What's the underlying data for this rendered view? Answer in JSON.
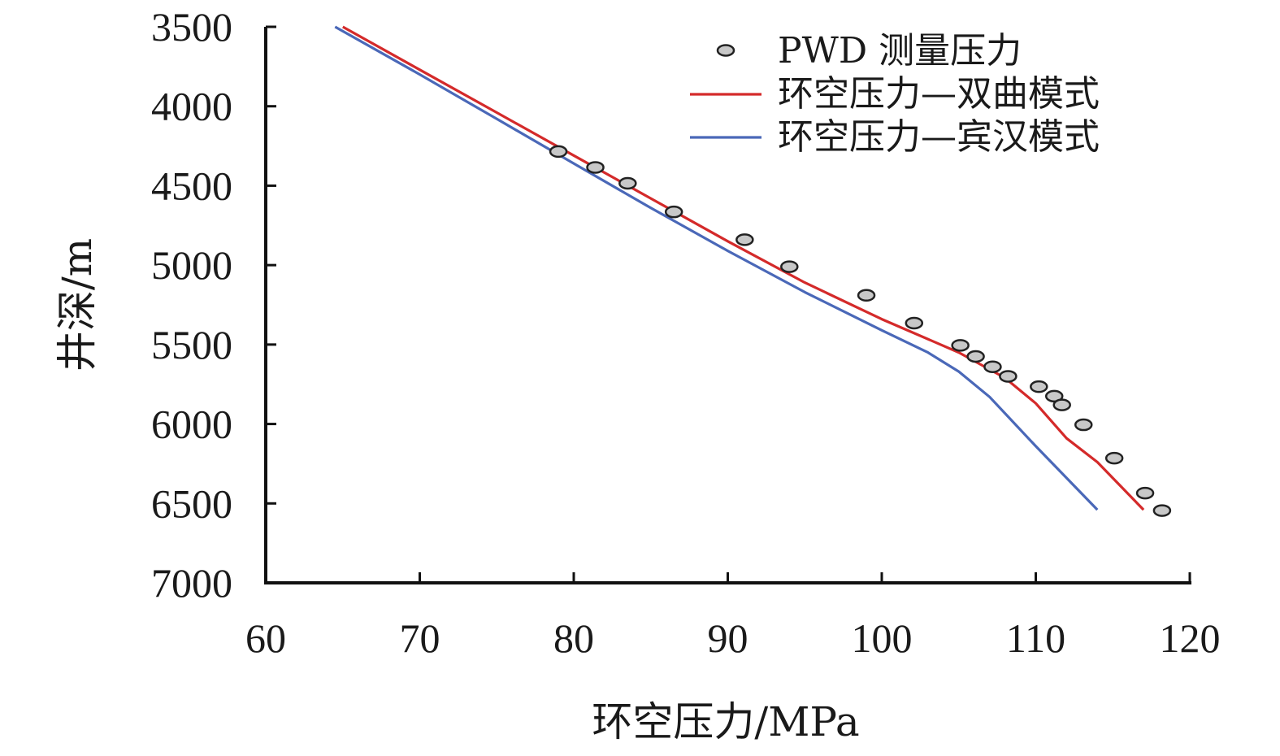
{
  "chart_data": {
    "type": "line",
    "title": "",
    "xlabel": "环空压力/MPa",
    "ylabel": "井深/m",
    "xlim": [
      60,
      120
    ],
    "ylim": [
      3500,
      7000
    ],
    "y_inverted": true,
    "xticks": [
      60,
      70,
      80,
      90,
      100,
      110,
      120
    ],
    "yticks": [
      3500,
      4000,
      4500,
      5000,
      5500,
      6000,
      6500,
      7000
    ],
    "grid": false,
    "legend_position": "top-right",
    "series": [
      {
        "name": "PWD 测量压力",
        "kind": "scatter",
        "color": "#c8c8c8",
        "edge_color": "#222222",
        "x": [
          79.0,
          81.4,
          83.5,
          86.5,
          91.1,
          94.0,
          99.0,
          102.1,
          105.1,
          106.1,
          107.2,
          108.2,
          110.2,
          111.2,
          111.7,
          113.1,
          115.1,
          117.1,
          118.2
        ],
        "y": [
          4285,
          4385,
          4485,
          4665,
          4840,
          5010,
          5190,
          5365,
          5505,
          5575,
          5640,
          5700,
          5765,
          5825,
          5880,
          6005,
          6215,
          6435,
          6545
        ]
      },
      {
        "name": "环空压力—双曲模式",
        "kind": "line",
        "color": "#d42a2a",
        "x": [
          65.0,
          70.0,
          75.0,
          80.0,
          85.0,
          90.0,
          95.0,
          100.0,
          105.0,
          108.0,
          110.0,
          112.0,
          114.0,
          117.0
        ],
        "y": [
          3500,
          3770,
          4040,
          4310,
          4580,
          4850,
          5110,
          5340,
          5550,
          5710,
          5870,
          6090,
          6240,
          6540
        ]
      },
      {
        "name": "环空压力—宾汉模式",
        "kind": "line",
        "color": "#4a68b8",
        "x": [
          64.5,
          70.0,
          75.0,
          80.0,
          85.0,
          90.0,
          95.0,
          100.0,
          103.0,
          105.0,
          107.0,
          110.0,
          114.0
        ],
        "y": [
          3500,
          3800,
          4080,
          4360,
          4640,
          4910,
          5170,
          5410,
          5550,
          5670,
          5830,
          6140,
          6540
        ]
      }
    ]
  }
}
